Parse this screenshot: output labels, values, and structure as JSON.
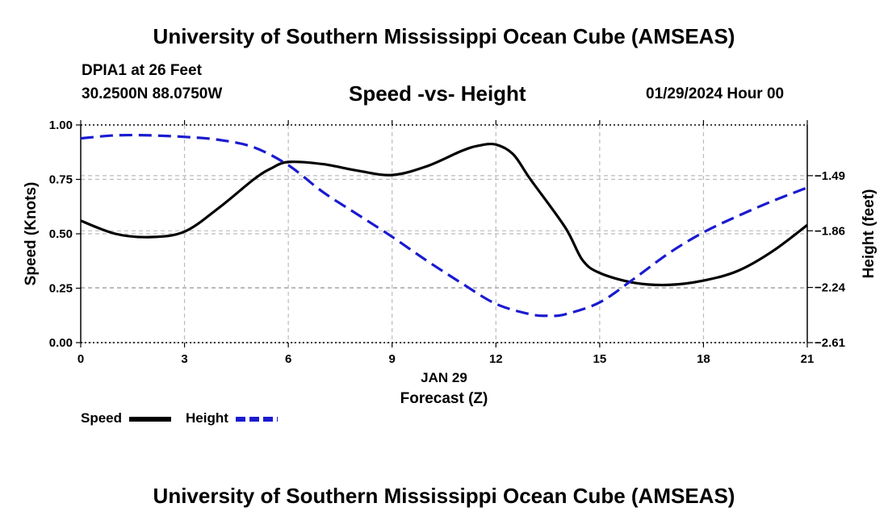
{
  "header": {
    "title": "University of Southern Mississippi Ocean Cube (AMSEAS)",
    "station": "DPIA1 at 26 Feet",
    "coords": "30.2500N  88.0750W",
    "chart_title": "Speed -vs- Height",
    "datetime": "01/29/2024 Hour 00"
  },
  "footer": {
    "title": "University of Southern Mississippi Ocean Cube (AMSEAS)"
  },
  "colors": {
    "speed": "#000000",
    "height": "#1a1ad0",
    "grid": "#bbbbbb"
  },
  "chart_data": {
    "type": "line",
    "title": "Speed -vs- Height",
    "xlabel": "Forecast (Z)",
    "xdate_label": "JAN 29",
    "ylabel": "Speed (Knots)",
    "y2label": "Height (feet)",
    "xlim": [
      0,
      21
    ],
    "ylim": [
      0,
      1
    ],
    "y2lim": [
      -2.61,
      -1.15
    ],
    "x_ticks": [
      0,
      3,
      6,
      9,
      12,
      15,
      18,
      21
    ],
    "x_tick_labels": [
      "0",
      "3",
      "6",
      "9",
      "12",
      "15",
      "18",
      "21"
    ],
    "y_ticks": [
      0,
      0.25,
      0.5,
      0.75,
      1.0
    ],
    "y_tick_labels": [
      "0.00",
      "0.25",
      "0.50",
      "0.75",
      "1.00"
    ],
    "y2_ticks": [
      -1.49,
      -1.86,
      -2.24,
      -2.61
    ],
    "y2_tick_labels": [
      "-1.49",
      "-1.86",
      "-2.24",
      "-2.61"
    ],
    "grid": true,
    "series": [
      {
        "name": "Speed",
        "axis": "left",
        "style": "solid",
        "x": [
          0,
          1,
          2,
          3,
          4,
          5,
          5.5,
          6,
          7,
          8,
          9,
          10,
          11,
          11.5,
          12,
          12.5,
          13,
          14,
          14.5,
          15,
          16,
          17,
          18,
          19,
          20,
          21
        ],
        "values": [
          0.56,
          0.5,
          0.485,
          0.51,
          0.62,
          0.75,
          0.8,
          0.83,
          0.82,
          0.79,
          0.77,
          0.81,
          0.88,
          0.905,
          0.91,
          0.865,
          0.75,
          0.53,
          0.38,
          0.32,
          0.275,
          0.265,
          0.285,
          0.33,
          0.42,
          0.54
        ]
      },
      {
        "name": "Height",
        "axis": "right",
        "style": "dashed",
        "x": [
          0,
          1,
          2,
          3,
          4,
          5,
          6,
          7,
          8,
          9,
          10,
          11,
          12,
          13,
          13.5,
          14,
          15,
          16,
          17,
          18,
          19,
          20,
          21
        ],
        "values": [
          -1.24,
          -1.22,
          -1.22,
          -1.23,
          -1.25,
          -1.3,
          -1.42,
          -1.6,
          -1.75,
          -1.9,
          -2.06,
          -2.21,
          -2.35,
          -2.42,
          -2.43,
          -2.42,
          -2.34,
          -2.18,
          -2.01,
          -1.87,
          -1.76,
          -1.66,
          -1.57
        ]
      }
    ],
    "legend": [
      {
        "name": "Speed",
        "style": "solid",
        "color": "#000000"
      },
      {
        "name": "Height",
        "style": "dashed",
        "color": "#1a1ad0"
      }
    ],
    "legend_position": "bottom-left"
  }
}
